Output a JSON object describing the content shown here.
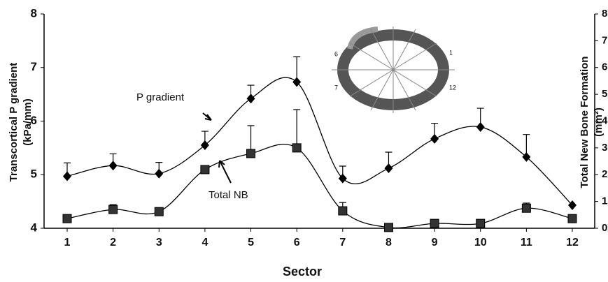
{
  "chart_data": {
    "type": "line",
    "x_label": "Sector",
    "y_label": [
      "Transcortical P gradient",
      "(kPa/mm)"
    ],
    "y2_label": [
      "Total New Bone Formation",
      "(mm²)"
    ],
    "categories": [
      "1",
      "2",
      "3",
      "4",
      "5",
      "6",
      "7",
      "8",
      "9",
      "10",
      "11",
      "12"
    ],
    "ylim": [
      4,
      8
    ],
    "yticks": [
      4,
      5,
      6,
      7,
      8
    ],
    "y2lim": [
      0,
      8
    ],
    "y2ticks": [
      0,
      1,
      2,
      3,
      4,
      5,
      6,
      7,
      8
    ],
    "series": [
      {
        "name": "P gradient",
        "color": "#000000",
        "marker": "diamond",
        "values": [
          4.97,
          5.17,
          5.02,
          5.55,
          6.42,
          6.73,
          4.93,
          5.12,
          5.67,
          5.89,
          5.33,
          4.43
        ],
        "errors": [
          0.25,
          0.22,
          0.21,
          0.26,
          0.25,
          0.47,
          0.23,
          0.3,
          0.29,
          0.35,
          0.42,
          null
        ]
      },
      {
        "name": "Total NB",
        "color": "#000000",
        "marker": "square",
        "axis": "y2",
        "values": [
          0.36,
          0.7,
          0.62,
          2.19,
          2.79,
          3.0,
          0.65,
          0.03,
          0.18,
          0.18,
          0.75,
          0.36
        ],
        "errors": [
          null,
          0.18,
          null,
          null,
          1.04,
          1.43,
          0.31,
          null,
          null,
          null,
          0.19,
          null
        ]
      }
    ],
    "inset_labels": [
      "6",
      "1",
      "7",
      "12"
    ]
  }
}
